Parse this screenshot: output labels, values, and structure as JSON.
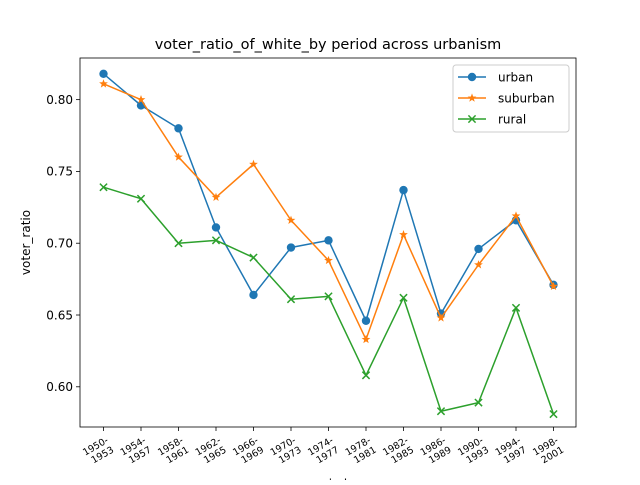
{
  "chart_data": {
    "type": "line",
    "title": "voter_ratio_of_white_by period across urbanism",
    "xlabel": "period",
    "ylabel": "voter_ratio",
    "categories": [
      [
        "1950-",
        "1953"
      ],
      [
        "1954-",
        "1957"
      ],
      [
        "1958-",
        "1961"
      ],
      [
        "1962-",
        "1965"
      ],
      [
        "1966-",
        "1969"
      ],
      [
        "1970-",
        "1973"
      ],
      [
        "1974-",
        "1977"
      ],
      [
        "1978-",
        "1981"
      ],
      [
        "1982-",
        "1985"
      ],
      [
        "1986-",
        "1989"
      ],
      [
        "1990-",
        "1993"
      ],
      [
        "1994-",
        "1997"
      ],
      [
        "1998-",
        "2001"
      ]
    ],
    "ylim": [
      0.572,
      0.829
    ],
    "yticks": [
      "0.60",
      "0.65",
      "0.70",
      "0.75",
      "0.80"
    ],
    "yticks_values": [
      0.6,
      0.65,
      0.7,
      0.75,
      0.8
    ],
    "grid": false,
    "legend_position": "top-right",
    "series": [
      {
        "name": "urban",
        "color": "#1f77b4",
        "marker": "circle",
        "values": [
          0.818,
          0.796,
          0.78,
          0.711,
          0.664,
          0.697,
          0.702,
          0.646,
          0.737,
          0.651,
          0.696,
          0.716,
          0.671
        ]
      },
      {
        "name": "suburban",
        "color": "#ff7f0e",
        "marker": "star",
        "values": [
          0.811,
          0.8,
          0.76,
          0.732,
          0.755,
          0.716,
          0.688,
          0.633,
          0.706,
          0.648,
          0.685,
          0.719,
          0.67
        ]
      },
      {
        "name": "rural",
        "color": "#2ca02c",
        "marker": "x",
        "values": [
          0.739,
          0.731,
          0.7,
          0.702,
          0.69,
          0.661,
          0.663,
          0.608,
          0.662,
          0.583,
          0.589,
          0.655,
          0.581
        ]
      }
    ]
  }
}
